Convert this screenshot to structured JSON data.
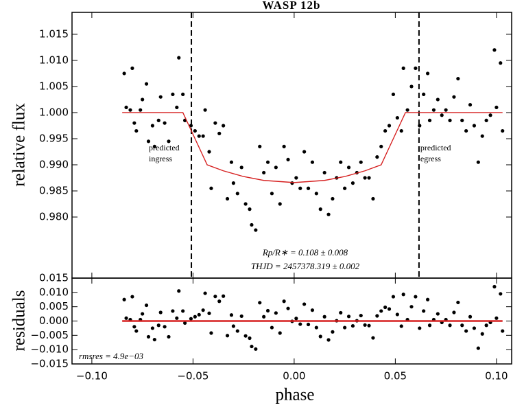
{
  "chart_data": [
    {
      "type": "scatter",
      "title": "WASP 12b",
      "ylabel": "relative flux",
      "xlim": [
        -0.1098,
        0.1075
      ],
      "ylim": [
        0.9683,
        1.0192
      ],
      "yticks": [
        {
          "value": 0.98,
          "label": "0.980"
        },
        {
          "value": 0.985,
          "label": "0.985"
        },
        {
          "value": 0.99,
          "label": "0.990"
        },
        {
          "value": 0.995,
          "label": "0.995"
        },
        {
          "value": 1.0,
          "label": "1.000"
        },
        {
          "value": 1.005,
          "label": "1.005"
        },
        {
          "value": 1.01,
          "label": "1.010"
        },
        {
          "value": 1.015,
          "label": "1.015"
        }
      ],
      "points": {
        "color": "#000000",
        "x": [
          -0.084,
          -0.083,
          -0.081,
          -0.08,
          -0.079,
          -0.078,
          -0.076,
          -0.075,
          -0.073,
          -0.072,
          -0.07,
          -0.069,
          -0.067,
          -0.066,
          -0.064,
          -0.062,
          -0.06,
          -0.058,
          -0.057,
          -0.055,
          -0.054,
          -0.051,
          -0.049,
          -0.047,
          -0.045,
          -0.044,
          -0.042,
          -0.041,
          -0.039,
          -0.037,
          -0.035,
          -0.033,
          -0.031,
          -0.03,
          -0.028,
          -0.026,
          -0.024,
          -0.022,
          -0.021,
          -0.019,
          -0.017,
          -0.015,
          -0.013,
          -0.011,
          -0.009,
          -0.007,
          -0.005,
          -0.003,
          -0.001,
          0.001,
          0.003,
          0.005,
          0.007,
          0.009,
          0.011,
          0.013,
          0.015,
          0.017,
          0.019,
          0.021,
          0.023,
          0.025,
          0.027,
          0.029,
          0.031,
          0.033,
          0.035,
          0.037,
          0.039,
          0.041,
          0.043,
          0.045,
          0.047,
          0.049,
          0.051,
          0.053,
          0.054,
          0.056,
          0.058,
          0.06,
          0.062,
          0.064,
          0.066,
          0.067,
          0.069,
          0.071,
          0.073,
          0.075,
          0.077,
          0.079,
          0.081,
          0.083,
          0.085,
          0.087,
          0.089,
          0.091,
          0.093,
          0.095,
          0.097,
          0.099,
          0.1,
          0.102,
          0.103
        ],
        "values": [
          1.0075,
          1.001,
          1.0005,
          1.0085,
          0.998,
          0.9965,
          1.0005,
          1.0025,
          1.0055,
          0.9945,
          0.9975,
          0.9935,
          0.9985,
          1.003,
          0.998,
          0.9945,
          1.0035,
          1.001,
          1.0105,
          1.0035,
          0.9985,
          0.9975,
          0.9965,
          0.9955,
          0.9955,
          1.0005,
          0.9925,
          0.9855,
          0.998,
          0.996,
          0.9975,
          0.9835,
          0.9905,
          0.9865,
          0.9845,
          0.9895,
          0.9825,
          0.9815,
          0.9785,
          0.9775,
          0.9935,
          0.9885,
          0.9905,
          0.9845,
          0.9895,
          0.9825,
          0.9935,
          0.991,
          0.9865,
          0.9875,
          0.9855,
          0.9925,
          0.9855,
          0.9905,
          0.9845,
          0.9815,
          0.9885,
          0.9805,
          0.9835,
          0.9875,
          0.9905,
          0.9855,
          0.9895,
          0.9865,
          0.9885,
          0.9905,
          0.9875,
          0.9875,
          0.9835,
          0.9915,
          0.9935,
          0.9965,
          0.9975,
          1.0035,
          0.999,
          0.9965,
          1.0085,
          1.0005,
          1.005,
          1.0085,
          0.9975,
          1.0035,
          1.0075,
          0.9985,
          1.0005,
          1.0025,
          0.9995,
          1.0005,
          0.9985,
          1.003,
          1.0065,
          0.9985,
          0.9965,
          1.0015,
          0.9975,
          0.9905,
          0.9955,
          0.9985,
          0.9995,
          1.012,
          1.001,
          1.0095,
          0.9965
        ]
      },
      "model": {
        "color": "#d62020",
        "x": [
          -0.085,
          -0.055,
          -0.052,
          -0.046,
          -0.043,
          -0.035,
          -0.025,
          -0.015,
          0,
          0.015,
          0.025,
          0.035,
          0.043,
          0.046,
          0.052,
          0.055,
          0.103
        ],
        "values": [
          1.0,
          1.0,
          0.9975,
          0.9925,
          0.99,
          0.98885,
          0.98775,
          0.98701,
          0.9866,
          0.98701,
          0.98775,
          0.98885,
          0.99,
          0.9925,
          0.9975,
          1.0,
          1.0
        ]
      },
      "vlines": [
        {
          "x": -0.0508,
          "label": [
            "predicted",
            "ingress"
          ]
        },
        {
          "x": 0.0617,
          "label": [
            "predicted",
            "egress"
          ]
        }
      ],
      "annotations": [
        "Rp/R∗ = 0.108 ± 0.008",
        "THJD = 2457378.319 ± 0.002"
      ]
    },
    {
      "type": "scatter",
      "ylabel": "residuals",
      "xlabel": "phase",
      "xlim": [
        -0.1098,
        0.1075
      ],
      "ylim": [
        -0.015,
        0.015
      ],
      "xticks": [
        {
          "value": -0.1,
          "label": "−0.10"
        },
        {
          "value": -0.05,
          "label": "−0.05"
        },
        {
          "value": 0,
          "label": "0.00"
        },
        {
          "value": 0.05,
          "label": "0.05"
        },
        {
          "value": 0.1,
          "label": "0.10"
        }
      ],
      "yticks": [
        {
          "value": -0.015,
          "label": "−0.015"
        },
        {
          "value": -0.01,
          "label": "−0.010"
        },
        {
          "value": -0.005,
          "label": "−0.005"
        },
        {
          "value": 0,
          "label": "0.000"
        },
        {
          "value": 0.005,
          "label": "0.005"
        },
        {
          "value": 0.01,
          "label": "0.010"
        },
        {
          "value": 0.015,
          "label": "0.015"
        }
      ],
      "points": {
        "color": "#000000",
        "x": [
          -0.084,
          -0.083,
          -0.081,
          -0.08,
          -0.079,
          -0.078,
          -0.076,
          -0.075,
          -0.073,
          -0.072,
          -0.07,
          -0.069,
          -0.067,
          -0.066,
          -0.064,
          -0.062,
          -0.06,
          -0.058,
          -0.057,
          -0.055,
          -0.054,
          -0.051,
          -0.049,
          -0.047,
          -0.045,
          -0.044,
          -0.042,
          -0.041,
          -0.039,
          -0.037,
          -0.035,
          -0.033,
          -0.031,
          -0.03,
          -0.028,
          -0.026,
          -0.024,
          -0.022,
          -0.021,
          -0.019,
          -0.017,
          -0.015,
          -0.013,
          -0.011,
          -0.009,
          -0.007,
          -0.005,
          -0.003,
          -0.001,
          0.001,
          0.003,
          0.005,
          0.007,
          0.009,
          0.011,
          0.013,
          0.015,
          0.017,
          0.019,
          0.021,
          0.023,
          0.025,
          0.027,
          0.029,
          0.031,
          0.033,
          0.035,
          0.037,
          0.039,
          0.041,
          0.043,
          0.045,
          0.047,
          0.049,
          0.051,
          0.053,
          0.054,
          0.056,
          0.058,
          0.06,
          0.062,
          0.064,
          0.066,
          0.067,
          0.069,
          0.071,
          0.073,
          0.075,
          0.077,
          0.079,
          0.081,
          0.083,
          0.085,
          0.087,
          0.089,
          0.091,
          0.093,
          0.095,
          0.097,
          0.099,
          0.1,
          0.102,
          0.103
        ],
        "values": [
          0.0075,
          0.001,
          0.0005,
          0.0085,
          -0.002,
          -0.0035,
          0.0005,
          0.0025,
          0.0055,
          -0.0055,
          -0.0025,
          -0.0065,
          -0.0015,
          0.003,
          -0.002,
          -0.0055,
          0.0035,
          0.001,
          0.0105,
          0.0035,
          -0.0007,
          0.0008,
          0.0015,
          0.0022,
          0.0038,
          0.0097,
          0.0027,
          -0.0042,
          0.0086,
          0.0069,
          0.0087,
          -0.0051,
          0.0021,
          -0.0018,
          -0.0035,
          0.0017,
          -0.0052,
          -0.006,
          -0.0089,
          -0.0098,
          0.0064,
          0.0015,
          0.0036,
          -0.0023,
          0.0028,
          -0.0042,
          0.0069,
          0.0044,
          -0.0001,
          0.0009,
          -0.0011,
          0.0059,
          -0.0012,
          0.0038,
          -0.0023,
          -0.0054,
          0.0015,
          -0.0066,
          -0.0038,
          0.0001,
          0.0029,
          -0.0023,
          0.0016,
          -0.0017,
          0.0001,
          0.0019,
          -0.0014,
          -0.0016,
          -0.0059,
          0.0018,
          0.0035,
          0.0048,
          0.0042,
          0.0085,
          0.0023,
          -0.0018,
          0.0093,
          0.0005,
          0.005,
          0.0085,
          -0.0025,
          0.0035,
          0.0075,
          -0.0015,
          0.0005,
          0.0025,
          -0.0005,
          0.0005,
          -0.0015,
          0.003,
          0.0065,
          -0.0015,
          -0.0035,
          0.0015,
          -0.0025,
          -0.0095,
          -0.0045,
          -0.0015,
          -0.0005,
          0.012,
          0.001,
          0.0095,
          -0.0035
        ]
      },
      "model": {
        "color": "#d62020",
        "x": [
          -0.085,
          0.103
        ],
        "values": [
          0,
          0
        ]
      },
      "annotations": [
        "rmsres = 4.9e−03"
      ]
    }
  ]
}
